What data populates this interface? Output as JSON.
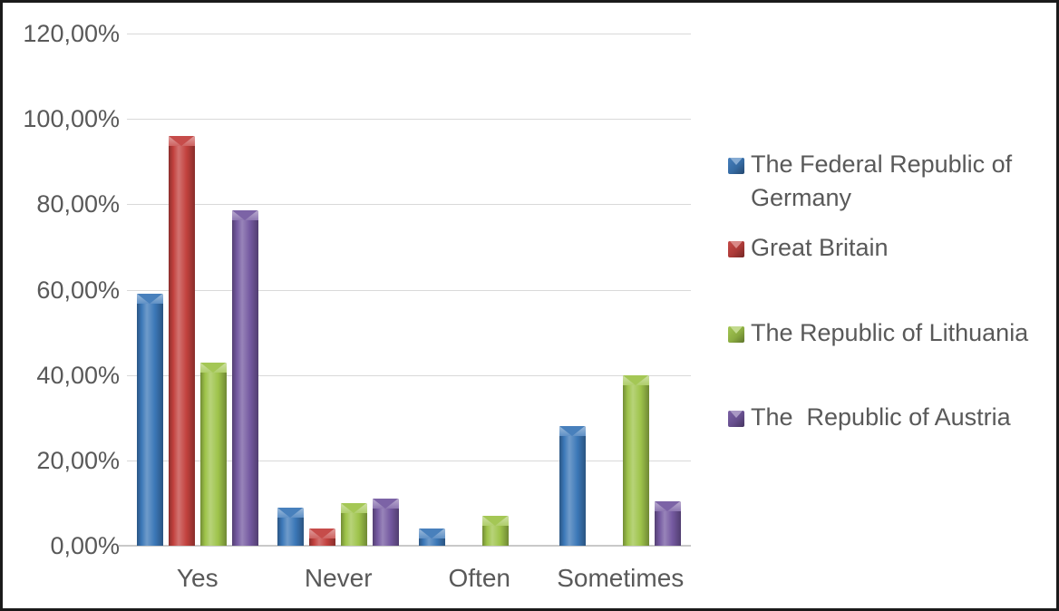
{
  "chart": {
    "background": "#ffffff",
    "border_color": "#1a1a1a",
    "text_color": "#595959",
    "gridline_color": "#d9d9d9",
    "axis_line_color": "#c9c9c9"
  },
  "chart_data": {
    "type": "bar",
    "title": "",
    "categories": [
      "Yes",
      "Never",
      "Often",
      "Sometimes"
    ],
    "series": [
      {
        "name": "The Federal Republic of Germany",
        "color": "#3c78b8",
        "values": [
          59,
          9,
          4,
          28
        ]
      },
      {
        "name": "Great Britain",
        "color": "#c2413e",
        "values": [
          96,
          4,
          0,
          0
        ]
      },
      {
        "name": "The Republic of Lithuania",
        "color": "#9ec34a",
        "values": [
          43,
          10,
          7,
          40
        ]
      },
      {
        "name": "The  Republic of Austria",
        "color": "#7459a0",
        "values": [
          78.5,
          11,
          0,
          10.5
        ]
      }
    ],
    "y_ticks": [
      "120,00%",
      "100,00%",
      "80,00%",
      "60,00%",
      "40,00%",
      "20,00%",
      "0,00%"
    ],
    "ylim": [
      0,
      120
    ],
    "y_step": 20,
    "value_format": "percent_comma_decimal",
    "grid": true,
    "legend_position": "right"
  }
}
